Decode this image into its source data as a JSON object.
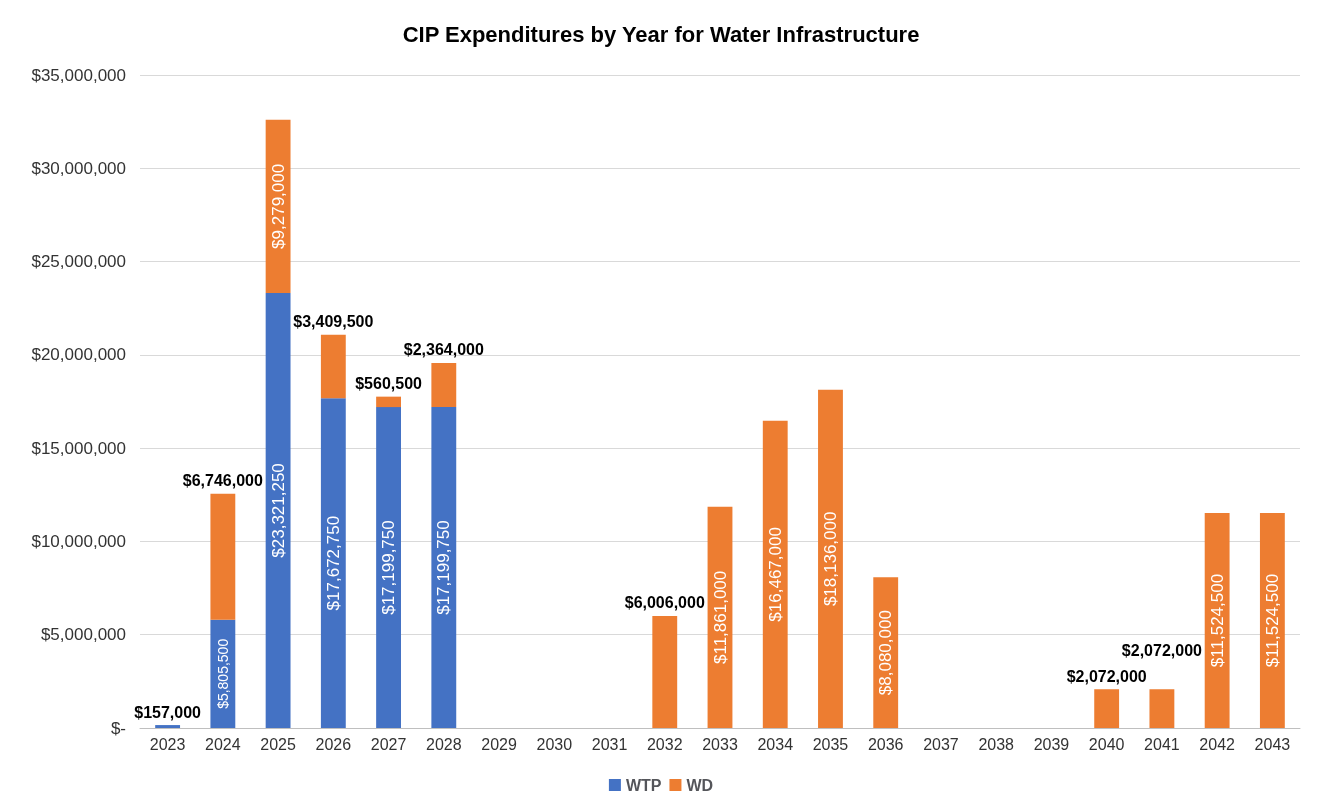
{
  "chart_data": {
    "type": "bar",
    "title": "CIP Expenditures by Year for Water Infrastructure",
    "stacked": true,
    "grid": "y",
    "legend": "bottom",
    "categories": [
      "2023",
      "2024",
      "2025",
      "2026",
      "2027",
      "2028",
      "2029",
      "2030",
      "2031",
      "2032",
      "2033",
      "2034",
      "2035",
      "2036",
      "2037",
      "2038",
      "2039",
      "2040",
      "2041",
      "2042",
      "2043"
    ],
    "ylim": [
      0,
      35000000
    ],
    "yticks": [
      {
        "value": 0,
        "label": "$-"
      },
      {
        "value": 5000000,
        "label": "$5,000,000"
      },
      {
        "value": 10000000,
        "label": "$10,000,000"
      },
      {
        "value": 15000000,
        "label": "$15,000,000"
      },
      {
        "value": 20000000,
        "label": "$20,000,000"
      },
      {
        "value": 25000000,
        "label": "$25,000,000"
      },
      {
        "value": 30000000,
        "label": "$30,000,000"
      },
      {
        "value": 35000000,
        "label": "$35,000,000"
      }
    ],
    "series": [
      {
        "name": "WTP",
        "color": "#4472c4",
        "values": [
          157000,
          5805500,
          23321250,
          17672750,
          17199750,
          17199750,
          null,
          null,
          null,
          null,
          null,
          null,
          null,
          null,
          null,
          null,
          null,
          null,
          null,
          null,
          null
        ],
        "value_labels": [
          "$157,000",
          "$5,805,500",
          "$23,321,250",
          "$17,672,750",
          "$17,199,750",
          "$17,199,750",
          null,
          null,
          null,
          null,
          null,
          null,
          null,
          null,
          null,
          null,
          null,
          null,
          null,
          null,
          null
        ]
      },
      {
        "name": "WD",
        "color": "#ed7d31",
        "values": [
          null,
          6746000,
          9279000,
          3409500,
          560500,
          2364000,
          null,
          null,
          null,
          6006000,
          11861000,
          16467000,
          18136000,
          8080000,
          null,
          null,
          null,
          2072000,
          2072000,
          11524500,
          11524500
        ],
        "value_labels": [
          null,
          "$6,746,000",
          "$9,279,000",
          "$3,409,500",
          "$560,500",
          "$2,364,000",
          null,
          null,
          null,
          "$6,006,000",
          "$11,861,000",
          "$16,467,000",
          "$18,136,000",
          "$8,080,000",
          null,
          null,
          null,
          "$2,072,000",
          "$2,072,000",
          "$11,524,500",
          "$11,524,500"
        ]
      }
    ]
  }
}
